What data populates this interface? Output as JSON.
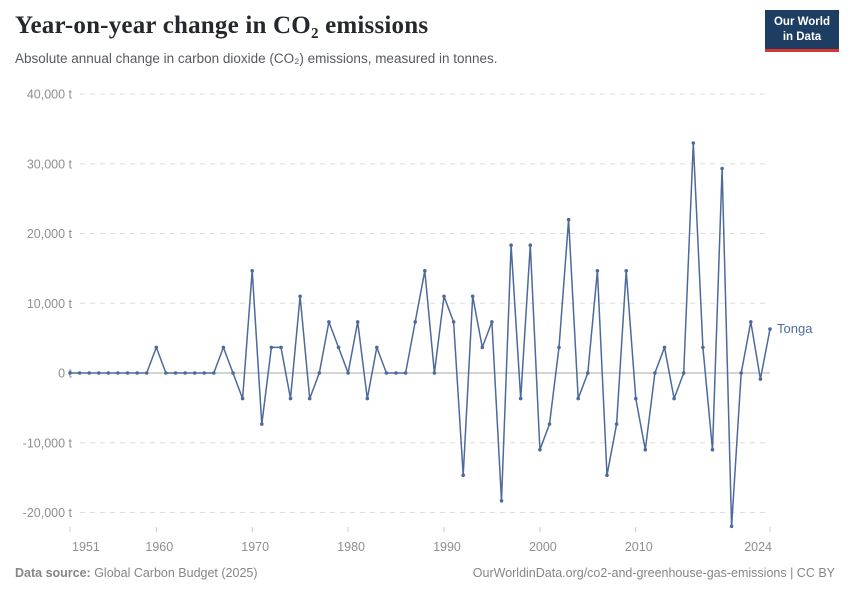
{
  "header": {
    "title": "Year-on-year change in CO₂ emissions",
    "subtitle": "Absolute annual change in carbon dioxide (CO₂) emissions, measured in tonnes."
  },
  "logo": {
    "line1": "Our World",
    "line2": "in Data",
    "bg_color": "#1d3d63",
    "accent_color": "#d8352b"
  },
  "chart_data": {
    "type": "line",
    "title": "Year-on-year change in CO₂ emissions",
    "xlabel": "",
    "ylabel": "",
    "y_unit": "t",
    "grid": "horizontal-dashed",
    "legend_position": "end-of-line-label",
    "xlim": [
      1950,
      2025
    ],
    "ylim": [
      -22500,
      40000
    ],
    "x_ticks": [
      1951,
      1960,
      1970,
      1980,
      1990,
      2000,
      2010,
      2024
    ],
    "y_ticks": [
      40000,
      30000,
      20000,
      10000,
      0,
      -10000,
      -20000
    ],
    "series": [
      {
        "name": "Tonga",
        "color": "#4C6A9C",
        "x": [
          1951,
          1952,
          1953,
          1954,
          1955,
          1956,
          1957,
          1958,
          1959,
          1960,
          1961,
          1962,
          1963,
          1964,
          1965,
          1966,
          1967,
          1968,
          1969,
          1970,
          1971,
          1972,
          1973,
          1974,
          1975,
          1976,
          1977,
          1978,
          1979,
          1980,
          1981,
          1982,
          1983,
          1984,
          1985,
          1986,
          1987,
          1988,
          1989,
          1990,
          1991,
          1992,
          1993,
          1994,
          1995,
          1996,
          1997,
          1998,
          1999,
          2000,
          2001,
          2002,
          2003,
          2004,
          2005,
          2006,
          2007,
          2008,
          2009,
          2010,
          2011,
          2012,
          2013,
          2014,
          2015,
          2016,
          2017,
          2018,
          2019,
          2020,
          2021,
          2022,
          2023,
          2024
        ],
        "values": [
          0,
          0,
          0,
          0,
          0,
          0,
          0,
          0,
          0,
          3664,
          0,
          0,
          0,
          0,
          0,
          0,
          3664,
          0,
          -3664,
          14656,
          -7328,
          3664,
          3664,
          -3664,
          10992,
          -3664,
          0,
          7328,
          3664,
          0,
          7328,
          -3664,
          3664,
          0,
          0,
          0,
          7328,
          14656,
          0,
          10992,
          7328,
          -14656,
          10992,
          3664,
          7328,
          -18320,
          18320,
          -3664,
          18320,
          -10992,
          -7328,
          3664,
          21984,
          -3664,
          0,
          14656,
          -14656,
          -7328,
          14656,
          -3664,
          -10992,
          0,
          3664,
          -3664,
          0,
          32976,
          3664,
          -10992,
          29312,
          -21984,
          0,
          7328,
          -880,
          6300
        ]
      }
    ],
    "colors": {
      "gridline": "#dddddd",
      "zero_line": "#a8a8a8",
      "tick_label": "#8f8f8f",
      "tick_mark": "#cccccc"
    }
  },
  "footer": {
    "data_source_label": "Data source:",
    "data_source_value": " Global Carbon Budget (2025)",
    "credit": "OurWorldinData.org/co2-and-greenhouse-gas-emissions | CC BY"
  }
}
